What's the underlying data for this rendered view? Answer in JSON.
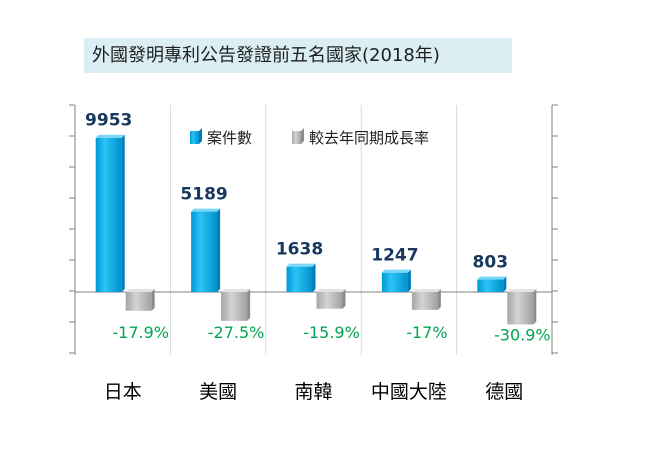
{
  "title": "外國發明專利公告發證前五名國家(2018年)",
  "chart_data": {
    "type": "bar",
    "categories": [
      "日本",
      "美國",
      "南韓",
      "中國大陸",
      "德國"
    ],
    "series": [
      {
        "name": "案件數",
        "values": [
          9953,
          5189,
          1638,
          1247,
          803
        ],
        "labels": [
          "9953",
          "5189",
          "1638",
          "1247",
          "803"
        ],
        "color": "#00b0f0"
      },
      {
        "name": "較去年同期成長率",
        "values": [
          -17.9,
          -27.5,
          -15.9,
          -17,
          -30.9
        ],
        "labels": [
          "-17.9%",
          "-27.5%",
          "-15.9%",
          "-17%",
          "-30.9%"
        ],
        "color": "#bfbfbf"
      }
    ],
    "legend": "top-right",
    "grid": true
  }
}
